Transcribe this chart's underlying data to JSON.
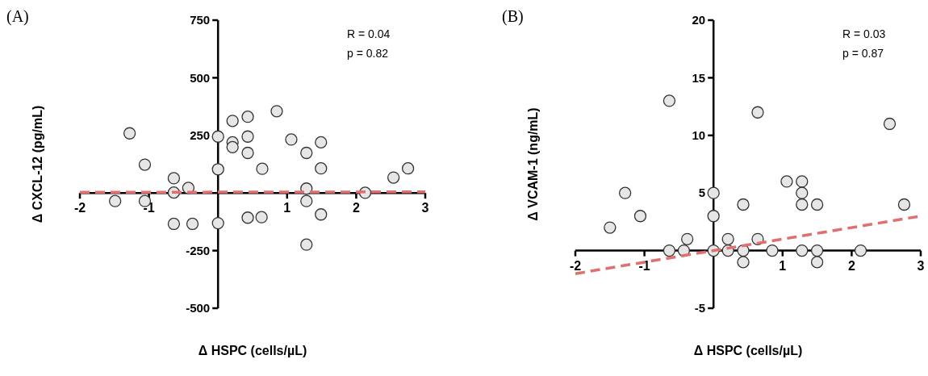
{
  "chart_data": [
    {
      "type": "scatter",
      "title": "(A)",
      "xlabel": "Δ HSPC (cells/µL)",
      "ylabel": "Δ CXCL-12 (pg/mL)",
      "annotations": [
        "R = 0.04",
        "p = 0.82"
      ],
      "xlim": [
        -2,
        3
      ],
      "xticks": [
        -2,
        -1,
        1,
        2,
        3
      ],
      "ylim": [
        -500,
        750
      ],
      "yticks": [
        -500,
        -250,
        250,
        500,
        750
      ],
      "series": [
        {
          "marker": "circle",
          "color": "#e6e6e6",
          "x": [
            -1.28,
            -1.06,
            -1.49,
            -1.06,
            -0.64,
            -0.64,
            -0.43,
            -0.64,
            -0.37,
            0,
            0,
            0,
            0.21,
            0.21,
            0.21,
            0.43,
            0.43,
            0.43,
            0.43,
            0.63,
            0.64,
            0.85,
            1.06,
            1.28,
            1.28,
            1.28,
            1.28,
            1.49,
            1.49,
            1.49,
            2.13,
            2.54,
            2.75
          ],
          "values": [
            259,
            123,
            -35,
            -35,
            64,
            2,
            22,
            -134,
            -134,
            245,
            103,
            -131,
            313,
            220,
            199,
            331,
            245,
            174,
            -107,
            -105,
            105,
            355,
            232,
            174,
            19,
            -35,
            -224,
            220,
            107,
            -93,
            1,
            67,
            107
          ]
        },
        {
          "type": "line",
          "color": "#e07070",
          "line_style": "dashed",
          "x": [
            -2,
            3
          ],
          "values": [
            3,
            5
          ]
        }
      ]
    },
    {
      "type": "scatter",
      "title": "(B)",
      "xlabel": "Δ HSPC (cells/µL)",
      "ylabel": "Δ VCAM-1 (ng/mL)",
      "annotations": [
        "R = 0.03",
        "p = 0.87"
      ],
      "xlim": [
        -2,
        3
      ],
      "xticks": [
        -2,
        -1,
        1,
        2,
        3
      ],
      "ylim": [
        -5,
        20
      ],
      "yticks": [
        -5,
        5,
        10,
        15,
        20
      ],
      "series": [
        {
          "marker": "circle",
          "color": "#e6e6e6",
          "x": [
            -1.5,
            -1.28,
            -1.06,
            -0.64,
            -0.64,
            -0.43,
            -0.38,
            0,
            0,
            0,
            0.21,
            0.21,
            0.43,
            0.43,
            0.43,
            0.64,
            0.64,
            0.85,
            1.06,
            1.28,
            1.28,
            1.28,
            1.28,
            1.5,
            1.5,
            1.5,
            2.13,
            2.55,
            2.76
          ],
          "values": [
            2,
            5,
            3,
            13,
            0,
            0,
            1,
            5,
            3,
            0,
            1,
            0,
            4,
            0,
            -1,
            12,
            1,
            0,
            6,
            6,
            5,
            4,
            0,
            4,
            0,
            -1,
            0,
            11,
            4
          ]
        },
        {
          "type": "line",
          "color": "#e07070",
          "line_style": "dashed",
          "x": [
            -2,
            3
          ],
          "values": [
            -2,
            3
          ]
        }
      ]
    }
  ]
}
